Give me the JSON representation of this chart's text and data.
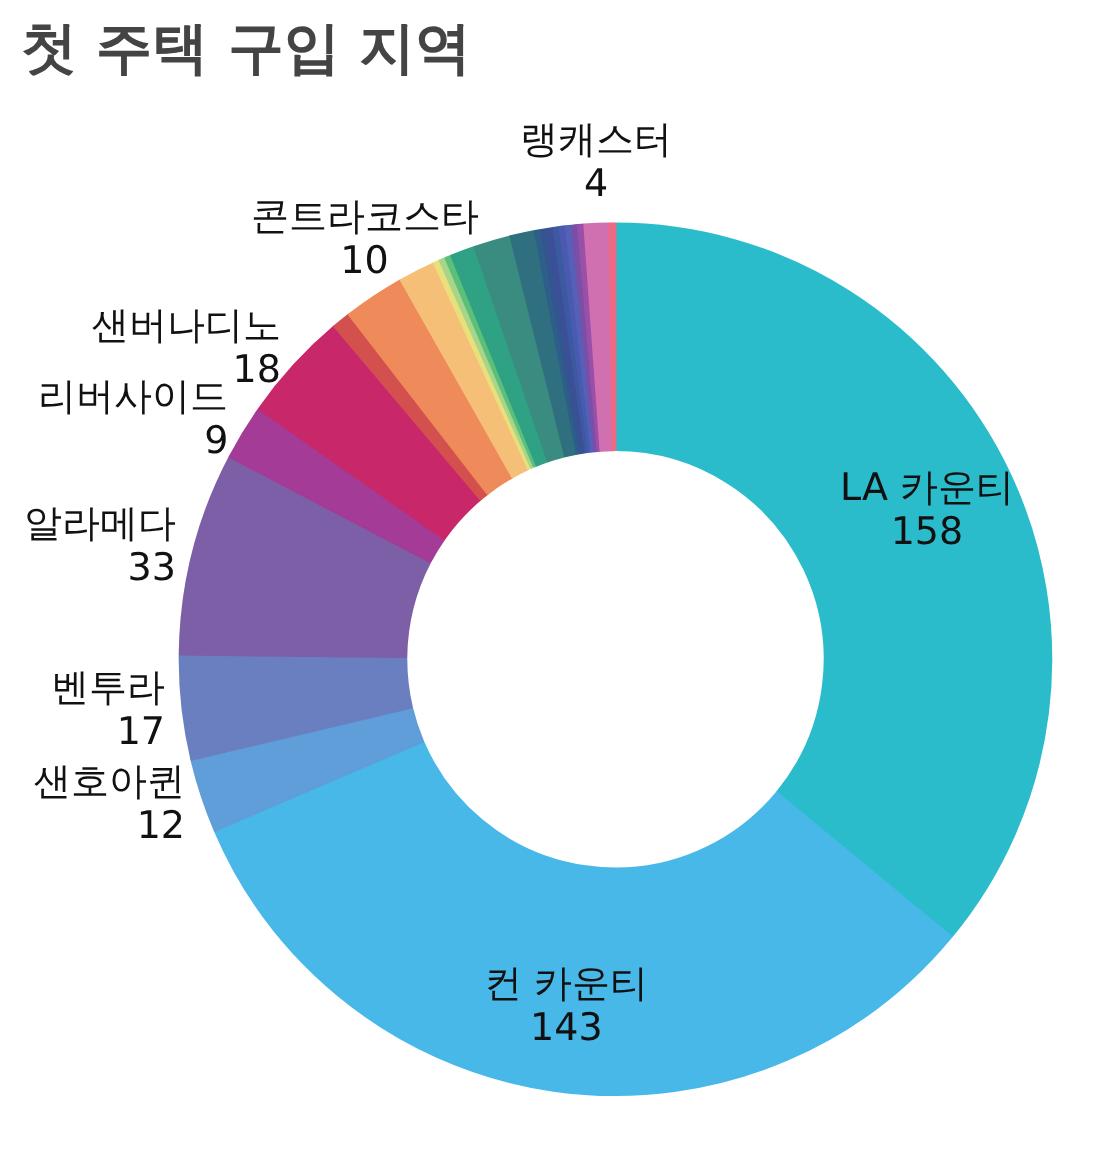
{
  "chart_data": {
    "type": "donut",
    "title": "첫 주택 구입 지역",
    "categories": [
      "LA 카운티",
      "컨 카운티",
      "샌호아퀸",
      "벤투라",
      "알라메다",
      "리버사이드",
      "샌버나디노",
      null,
      "콘트라코스타",
      null,
      null,
      null,
      null,
      null,
      null,
      null,
      null,
      null,
      null,
      null,
      null,
      null,
      null,
      null,
      "랭캐스터",
      null
    ],
    "values": [
      158,
      143,
      12,
      17,
      33,
      9,
      18,
      3,
      10,
      6,
      1,
      1,
      1,
      4,
      6,
      4,
      1,
      1,
      1,
      1,
      1,
      1,
      1,
      1,
      4,
      1
    ],
    "value_labels": [
      "158",
      "143",
      "12",
      "17",
      "33",
      "9",
      "18",
      null,
      "10",
      null,
      null,
      null,
      null,
      null,
      null,
      null,
      null,
      null,
      null,
      null,
      null,
      null,
      null,
      null,
      "4",
      null
    ],
    "colors": [
      "#2bbccc",
      "#48b8e8",
      "#5f9ed8",
      "#6a7fbf",
      "#7d5fa8",
      "#a33b97",
      "#c8286a",
      "#d4504f",
      "#ef8a5a",
      "#f6bf78",
      "#e8e07a",
      "#a8d58a",
      "#5cbf7a",
      "#2fa284",
      "#3a8c80",
      "#2f6f80",
      "#2e5f8a",
      "#34558f",
      "#3c4f98",
      "#3b5aa0",
      "#4a5ab0",
      "#5560b8",
      "#7a4fa8",
      "#9a4fa8",
      "#d070b0",
      "#ec6a86"
    ]
  }
}
